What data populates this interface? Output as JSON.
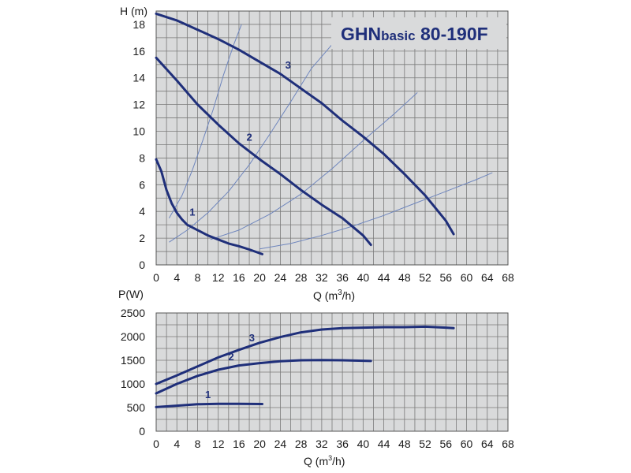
{
  "colors": {
    "plot_bg": "#d9dadb",
    "grid": "#7a7a7a",
    "curve": "#1f2f7a",
    "system_curve": "#6f86bd",
    "title": "#1f2f7a"
  },
  "chart_data": [
    {
      "type": "line",
      "title_parts": {
        "prefix": "GHN",
        "sub": "basic",
        "suffix": " 80-190F"
      },
      "ylabel": "H (m)",
      "xlabel_prefix": "Q (m",
      "xlabel_sup": "3",
      "xlabel_suffix": "/h)",
      "xlim": [
        0,
        68
      ],
      "ylim": [
        0,
        19
      ],
      "xticks": [
        "0",
        "4",
        "8",
        "12",
        "16",
        "20",
        "24",
        "28",
        "32",
        "36",
        "40",
        "44",
        "48",
        "52",
        "56",
        "60",
        "64",
        "68"
      ],
      "yticks": [
        "0",
        "2",
        "4",
        "6",
        "8",
        "10",
        "12",
        "14",
        "16",
        "18"
      ],
      "grid": true,
      "series": [
        {
          "name": "1",
          "points": [
            [
              0,
              7.9
            ],
            [
              1,
              7.0
            ],
            [
              2,
              5.6
            ],
            [
              3,
              4.6
            ],
            [
              4,
              3.9
            ],
            [
              5,
              3.4
            ],
            [
              6,
              3.0
            ],
            [
              8,
              2.6
            ],
            [
              10,
              2.2
            ],
            [
              12,
              1.9
            ],
            [
              14,
              1.6
            ],
            [
              16,
              1.4
            ],
            [
              18,
              1.15
            ],
            [
              20.5,
              0.8
            ]
          ]
        },
        {
          "name": "2",
          "points": [
            [
              0,
              15.5
            ],
            [
              4,
              13.8
            ],
            [
              8,
              12.0
            ],
            [
              12,
              10.5
            ],
            [
              16,
              9.1
            ],
            [
              20,
              7.9
            ],
            [
              24,
              6.8
            ],
            [
              28,
              5.6
            ],
            [
              32,
              4.5
            ],
            [
              36,
              3.5
            ],
            [
              40,
              2.2
            ],
            [
              41.5,
              1.5
            ]
          ]
        },
        {
          "name": "3",
          "points": [
            [
              0,
              18.8
            ],
            [
              4,
              18.3
            ],
            [
              8,
              17.6
            ],
            [
              12,
              16.9
            ],
            [
              16,
              16.1
            ],
            [
              20,
              15.2
            ],
            [
              24,
              14.3
            ],
            [
              28,
              13.2
            ],
            [
              32,
              12.1
            ],
            [
              36,
              10.8
            ],
            [
              40,
              9.6
            ],
            [
              44,
              8.3
            ],
            [
              48,
              6.8
            ],
            [
              52,
              5.2
            ],
            [
              56,
              3.3
            ],
            [
              57.5,
              2.3
            ]
          ]
        }
      ],
      "system_curves": [
        {
          "points": [
            [
              2.5,
              3.5
            ],
            [
              5,
              5.2
            ],
            [
              7,
              7.1
            ],
            [
              9,
              9.3
            ],
            [
              11,
              11.6
            ],
            [
              13,
              14.2
            ],
            [
              15,
              16.5
            ],
            [
              16.5,
              18.0
            ]
          ]
        },
        {
          "points": [
            [
              2.5,
              1.7
            ],
            [
              6,
              2.6
            ],
            [
              10,
              3.9
            ],
            [
              14,
              5.5
            ],
            [
              18,
              7.5
            ],
            [
              22,
              9.8
            ],
            [
              26,
              12.2
            ],
            [
              30,
              14.7
            ],
            [
              34,
              16.5
            ]
          ]
        },
        {
          "points": [
            [
              10.5,
              1.9
            ],
            [
              16,
              2.6
            ],
            [
              22,
              3.8
            ],
            [
              28,
              5.3
            ],
            [
              34,
              7.2
            ],
            [
              40,
              9.3
            ],
            [
              46,
              11.3
            ],
            [
              50.5,
              12.9
            ]
          ]
        },
        {
          "points": [
            [
              20,
              1.2
            ],
            [
              26,
              1.6
            ],
            [
              32,
              2.2
            ],
            [
              38,
              2.9
            ],
            [
              44,
              3.7
            ],
            [
              50,
              4.6
            ],
            [
              56,
              5.5
            ],
            [
              62,
              6.4
            ],
            [
              65,
              6.9
            ]
          ]
        }
      ],
      "label_positions": [
        {
          "text": "1",
          "x": 7,
          "y": 3.7
        },
        {
          "text": "2",
          "x": 18,
          "y": 9.3
        },
        {
          "text": "3",
          "x": 25.5,
          "y": 14.7
        }
      ]
    },
    {
      "type": "line",
      "ylabel": "P(W)",
      "xlabel_prefix": "Q (m",
      "xlabel_sup": "3",
      "xlabel_suffix": "/h)",
      "xlim": [
        0,
        68
      ],
      "ylim": [
        0,
        2500
      ],
      "xticks": [
        "0",
        "4",
        "8",
        "12",
        "16",
        "20",
        "24",
        "28",
        "32",
        "36",
        "40",
        "44",
        "48",
        "52",
        "56",
        "60",
        "64",
        "68"
      ],
      "yticks": [
        "0",
        "500",
        "1000",
        "1500",
        "2000",
        "2500"
      ],
      "grid": true,
      "series": [
        {
          "name": "1",
          "points": [
            [
              0,
              510
            ],
            [
              4,
              540
            ],
            [
              8,
              570
            ],
            [
              12,
              580
            ],
            [
              16,
              580
            ],
            [
              20.5,
              575
            ]
          ]
        },
        {
          "name": "2",
          "points": [
            [
              0,
              800
            ],
            [
              4,
              1000
            ],
            [
              8,
              1170
            ],
            [
              12,
              1300
            ],
            [
              16,
              1390
            ],
            [
              20,
              1440
            ],
            [
              24,
              1480
            ],
            [
              28,
              1500
            ],
            [
              32,
              1505
            ],
            [
              36,
              1500
            ],
            [
              41.5,
              1485
            ]
          ]
        },
        {
          "name": "3",
          "points": [
            [
              0,
              1000
            ],
            [
              4,
              1180
            ],
            [
              8,
              1370
            ],
            [
              12,
              1560
            ],
            [
              16,
              1720
            ],
            [
              20,
              1870
            ],
            [
              24,
              1990
            ],
            [
              28,
              2090
            ],
            [
              32,
              2150
            ],
            [
              36,
              2180
            ],
            [
              40,
              2190
            ],
            [
              44,
              2200
            ],
            [
              48,
              2200
            ],
            [
              52,
              2210
            ],
            [
              56,
              2190
            ],
            [
              57.5,
              2180
            ]
          ]
        }
      ],
      "label_positions": [
        {
          "text": "1",
          "x": 10,
          "y": 700
        },
        {
          "text": "2",
          "x": 14.5,
          "y": 1500
        },
        {
          "text": "3",
          "x": 18.5,
          "y": 1900
        }
      ]
    }
  ]
}
